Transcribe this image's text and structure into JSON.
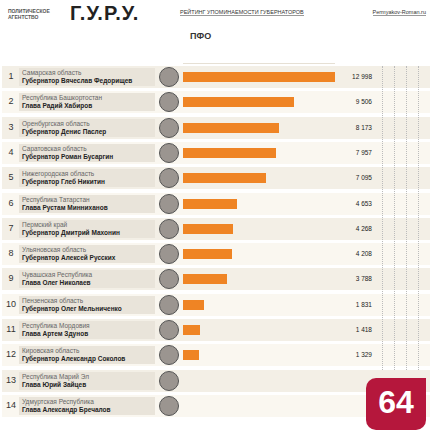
{
  "header": {
    "agency": "ПОЛИТИЧЕСКОЕ АГЕНТСТВО",
    "logo": "Г.У.Р.У.",
    "site": "Permyakov-Roman.ru",
    "badge": "64"
  },
  "chart_data": {
    "type": "bar",
    "orientation": "horizontal",
    "title": "РЕЙТИНГ УПОМИНАЕМОСТИ ГУБЕРНАТОРОВ",
    "subtitle": "ПФО",
    "ranks": [
      1,
      2,
      3,
      4,
      5,
      6,
      7,
      8,
      9,
      10,
      11,
      12,
      13,
      14
    ],
    "categories": [
      "Самарская область",
      "Республика Башкортостан",
      "Оренбургская область",
      "Саратовская область",
      "Нижегородская область",
      "Республика Татарстан",
      "Пермский край",
      "Ульяновская область",
      "Чувашская Республика",
      "Пензенская область",
      "Республика Мордовия",
      "Кировская область",
      "Республика Марий Эл",
      "Удмуртская Республика"
    ],
    "persons": [
      "Губернатор Вячеслав Федорищев",
      "Глава Радий Хабиров",
      "Губернатор Денис Паслер",
      "Губернатор Роман Бусаргин",
      "Губернатор Глеб Никитин",
      "Глава Рустам Минниханов",
      "Губернатор Дмитрий Махонин",
      "Губернатор Алексей Русских",
      "Глава Олег Николаев",
      "Губернатор Олег Мельниченко",
      "Глава Артем Здунов",
      "Губернатор Александр Соколов",
      "Глава Юрий Зайцев",
      "Глава Александр Бречалов"
    ],
    "values": [
      12998,
      9506,
      8173,
      7957,
      7095,
      4653,
      4268,
      4208,
      3788,
      1831,
      1418,
      1329,
      null,
      null
    ],
    "value_labels": [
      "12 998",
      "9 506",
      "8 173",
      "7 957",
      "7 095",
      "4 653",
      "4 268",
      "4 208",
      "3 788",
      "1 831",
      "1 418",
      "1 329",
      null,
      null
    ],
    "data_labels": true,
    "color": "#ef8424",
    "xlim": [
      0,
      13000
    ],
    "xticks": [],
    "tick_labels": false,
    "grid": false
  }
}
